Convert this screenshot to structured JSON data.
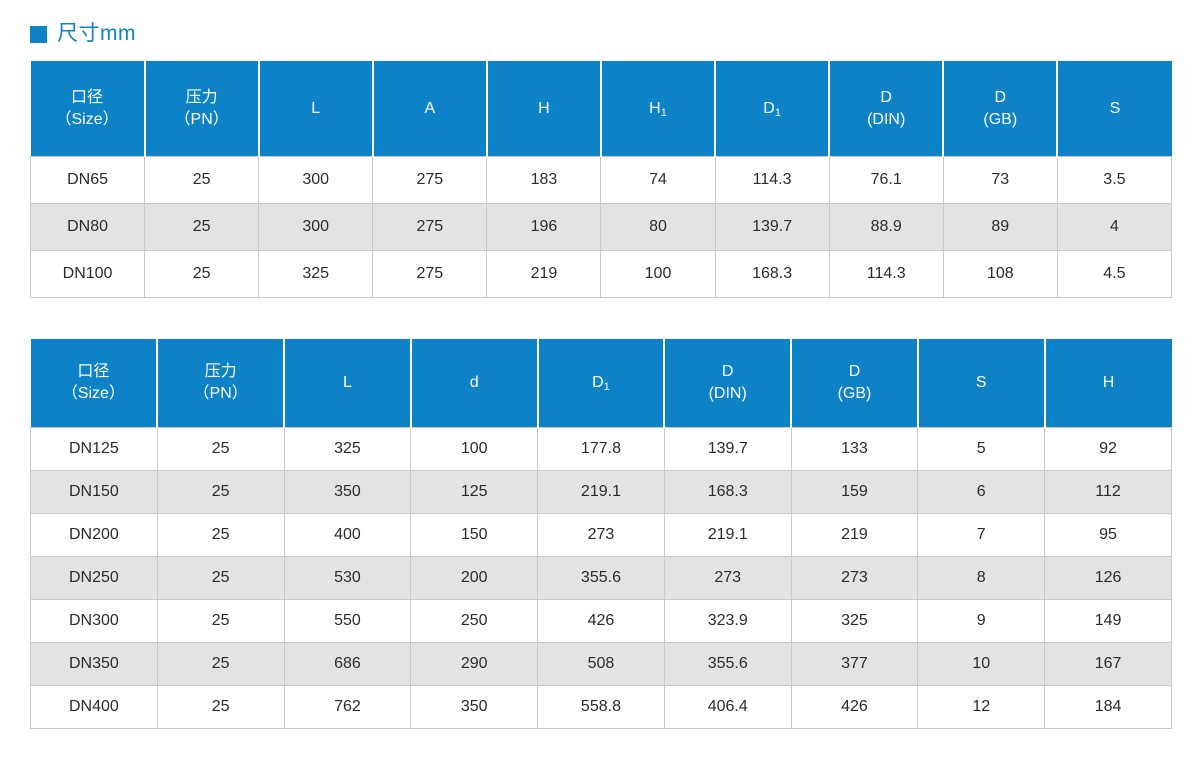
{
  "page": {
    "title": "尺寸mm",
    "accent_color": "#0d82c6",
    "alt_row_color": "#e3e3e3"
  },
  "table1": {
    "columns": [
      {
        "line1": "口径",
        "line2": "（Size）"
      },
      {
        "line1": "压力",
        "line2": "（PN）"
      },
      {
        "base": "L"
      },
      {
        "base": "A"
      },
      {
        "base": "H"
      },
      {
        "base": "H",
        "sub": "1"
      },
      {
        "base": "D",
        "sub": "1"
      },
      {
        "line1": "D",
        "line2": "(DIN)"
      },
      {
        "line1": "D",
        "line2": "(GB)"
      },
      {
        "base": "S"
      }
    ],
    "rows": [
      [
        "DN65",
        "25",
        "300",
        "275",
        "183",
        "74",
        "114.3",
        "76.1",
        "73",
        "3.5"
      ],
      [
        "DN80",
        "25",
        "300",
        "275",
        "196",
        "80",
        "139.7",
        "88.9",
        "89",
        "4"
      ],
      [
        "DN100",
        "25",
        "325",
        "275",
        "219",
        "100",
        "168.3",
        "114.3",
        "108",
        "4.5"
      ]
    ]
  },
  "table2": {
    "columns": [
      {
        "line1": "口径",
        "line2": "（Size）"
      },
      {
        "line1": "压力",
        "line2": "（PN）"
      },
      {
        "base": "L"
      },
      {
        "base": "d"
      },
      {
        "base": "D",
        "sub": "1"
      },
      {
        "line1": "D",
        "line2": "(DIN)"
      },
      {
        "line1": "D",
        "line2": "(GB)"
      },
      {
        "base": "S"
      },
      {
        "base": "H"
      }
    ],
    "rows": [
      [
        "DN125",
        "25",
        "325",
        "100",
        "177.8",
        "139.7",
        "133",
        "5",
        "92"
      ],
      [
        "DN150",
        "25",
        "350",
        "125",
        "219.1",
        "168.3",
        "159",
        "6",
        "112"
      ],
      [
        "DN200",
        "25",
        "400",
        "150",
        "273",
        "219.1",
        "219",
        "7",
        "95"
      ],
      [
        "DN250",
        "25",
        "530",
        "200",
        "355.6",
        "273",
        "273",
        "8",
        "126"
      ],
      [
        "DN300",
        "25",
        "550",
        "250",
        "426",
        "323.9",
        "325",
        "9",
        "149"
      ],
      [
        "DN350",
        "25",
        "686",
        "290",
        "508",
        "355.6",
        "377",
        "10",
        "167"
      ],
      [
        "DN400",
        "25",
        "762",
        "350",
        "558.8",
        "406.4",
        "426",
        "12",
        "184"
      ]
    ]
  }
}
